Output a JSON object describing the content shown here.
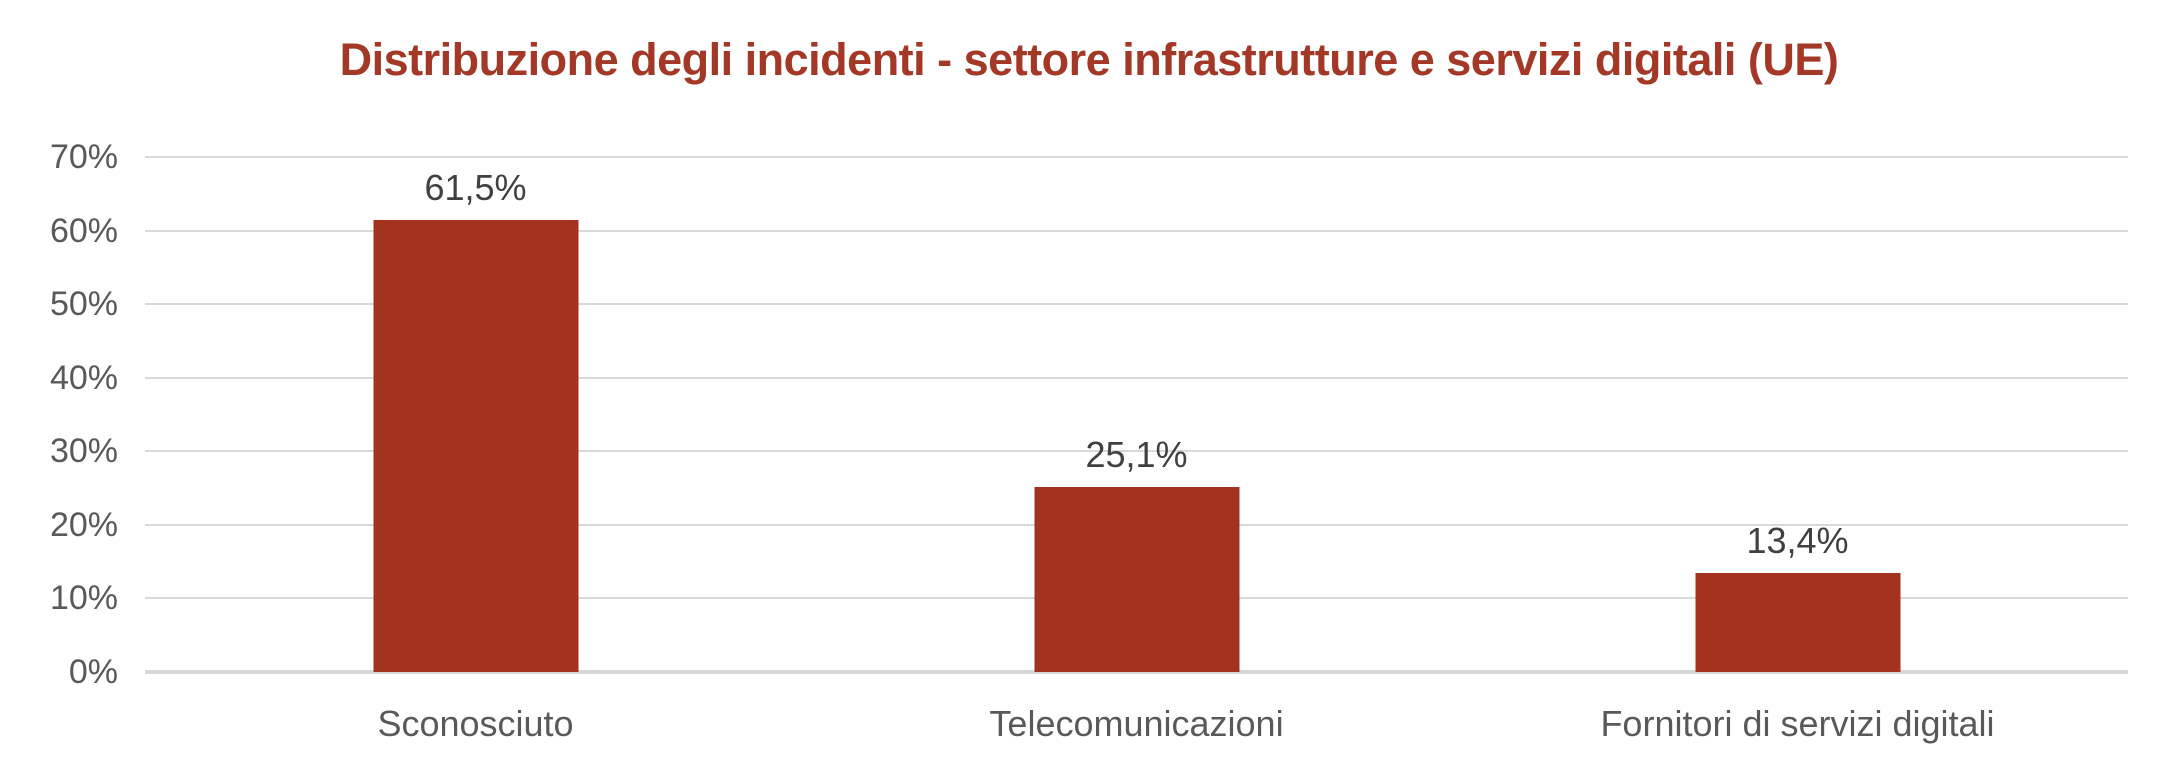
{
  "chart_data": {
    "type": "bar",
    "title": "Distribuzione degli incidenti - settore infrastrutture e servizi digitali (UE)",
    "categories": [
      "Sconosciuto",
      "Telecomunicazioni",
      "Fornitori di servizi digitali"
    ],
    "values": [
      61.5,
      25.1,
      13.4
    ],
    "value_labels": [
      "61,5%",
      "25,1%",
      "13,4%"
    ],
    "xlabel": "",
    "ylabel": "",
    "ylim": [
      0,
      70
    ],
    "y_ticks": [
      {
        "value": 0,
        "label": "0%"
      },
      {
        "value": 10,
        "label": "10%"
      },
      {
        "value": 20,
        "label": "20%"
      },
      {
        "value": 30,
        "label": "30%"
      },
      {
        "value": 40,
        "label": "40%"
      },
      {
        "value": 50,
        "label": "50%"
      },
      {
        "value": 60,
        "label": "60%"
      },
      {
        "value": 70,
        "label": "70%"
      }
    ],
    "grid": "horizontal",
    "legend": "none",
    "colors": {
      "bar": "#A3331F",
      "title": "#A43827",
      "value_label": "#404040",
      "tick_label": "#595959",
      "category_label": "#595959",
      "gridline": "#D9D9D9",
      "baseline": "#D6D6D6",
      "background": "#FFFFFF"
    }
  }
}
